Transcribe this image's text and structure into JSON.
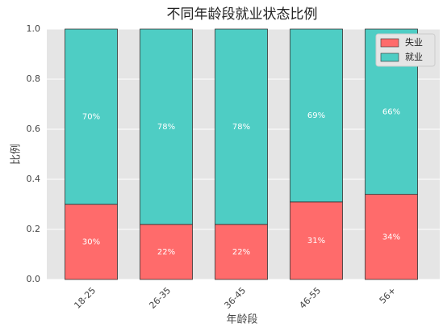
{
  "chart_data": {
    "type": "stacked_bar",
    "title": "不同年龄段就业状态比例",
    "xlabel": "年龄段",
    "ylabel": "比例",
    "categories": [
      "18-25",
      "26-35",
      "36-45",
      "46-55",
      "56+"
    ],
    "series": [
      {
        "name": "失业",
        "color": "#ff6b6b",
        "values": [
          0.3,
          0.22,
          0.22,
          0.31,
          0.34
        ],
        "value_labels": [
          "30%",
          "22%",
          "22%",
          "31%",
          "34%"
        ]
      },
      {
        "name": "就业",
        "color": "#4ecdc4",
        "values": [
          0.7,
          0.78,
          0.78,
          0.69,
          0.66
        ],
        "value_labels": [
          "70%",
          "78%",
          "78%",
          "69%",
          "66%"
        ]
      }
    ],
    "ylim": [
      0,
      1
    ],
    "yticks": [
      {
        "value": 0,
        "label": "0.0"
      },
      0.2,
      0.4,
      0.6,
      0.8,
      {
        "value": 1,
        "label": "1.0"
      }
    ],
    "grid": true,
    "legend": "upper right"
  }
}
